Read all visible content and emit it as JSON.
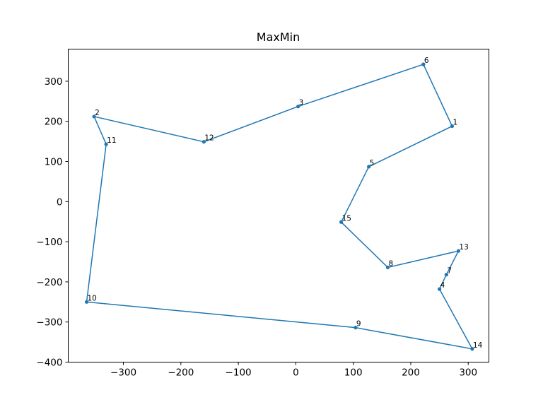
{
  "chart_data": {
    "type": "line",
    "title": "MaxMin",
    "xlabel": "",
    "ylabel": "",
    "xlim": [
      -396,
      336
    ],
    "ylim": [
      -400,
      380
    ],
    "xticks": [
      -300,
      -200,
      -100,
      0,
      100,
      200,
      300
    ],
    "yticks": [
      -400,
      -300,
      -200,
      -100,
      0,
      100,
      200,
      300
    ],
    "xtick_labels": [
      "−300",
      "−200",
      "−100",
      "0",
      "100",
      "200",
      "300"
    ],
    "ytick_labels": [
      "−400",
      "−300",
      "−200",
      "−100",
      "0",
      "100",
      "200",
      "300"
    ],
    "grid": false,
    "color": "#1f77b4",
    "series": [
      {
        "labels": [
          "6",
          "1",
          "5",
          "15",
          "8",
          "13",
          "7",
          "4",
          "14",
          "9",
          "10",
          "11",
          "2",
          "12",
          "3",
          "6"
        ],
        "x": [
          222,
          272,
          127,
          79,
          160,
          283,
          262,
          250,
          307,
          104,
          -364,
          -330,
          -351,
          -160,
          4,
          222
        ],
        "y": [
          342,
          188,
          87,
          -51,
          -164,
          -123,
          -182,
          -218,
          -367,
          -314,
          -250,
          143,
          212,
          149,
          237,
          342
        ]
      }
    ]
  }
}
